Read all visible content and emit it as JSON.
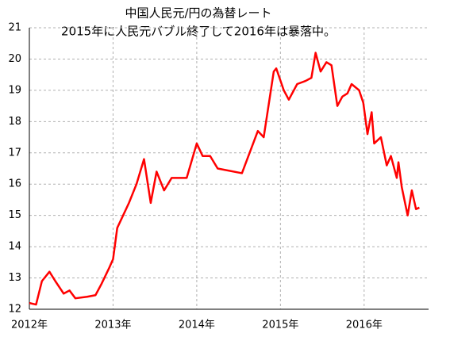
{
  "chart_data": {
    "type": "line",
    "title": "中国人民元/円の為替レート",
    "subtitle": "2015年に人民元バブル終了して2016年は暴落中。",
    "x": [
      2012.0,
      2012.08,
      2012.15,
      2012.24,
      2012.31,
      2012.41,
      2012.48,
      2012.55,
      2012.69,
      2012.79,
      2012.86,
      2012.95,
      2013.0,
      2013.05,
      2013.12,
      2013.19,
      2013.28,
      2013.37,
      2013.45,
      2013.52,
      2013.61,
      2013.7,
      2013.88,
      2014.0,
      2014.07,
      2014.16,
      2014.25,
      2014.54,
      2014.73,
      2014.8,
      2014.92,
      2014.95,
      2015.04,
      2015.1,
      2015.2,
      2015.3,
      2015.37,
      2015.42,
      2015.48,
      2015.55,
      2015.61,
      2015.68,
      2015.74,
      2015.8,
      2015.85,
      2015.94,
      2015.99,
      2016.04,
      2016.09,
      2016.12,
      2016.2,
      2016.27,
      2016.32,
      2016.39,
      2016.41,
      2016.45,
      2016.52,
      2016.57,
      2016.62,
      2016.66
    ],
    "series": [
      {
        "color": "#ff0000",
        "values": [
          12.2,
          12.15,
          12.9,
          13.2,
          12.9,
          12.5,
          12.6,
          12.35,
          12.4,
          12.45,
          12.8,
          13.3,
          13.6,
          14.6,
          15.0,
          15.4,
          16.0,
          16.8,
          15.4,
          16.4,
          15.8,
          16.2,
          16.2,
          17.3,
          16.9,
          16.9,
          16.5,
          16.35,
          17.7,
          17.5,
          19.6,
          19.7,
          19.0,
          18.7,
          19.2,
          19.3,
          19.4,
          20.2,
          19.6,
          19.9,
          19.8,
          18.5,
          18.8,
          18.9,
          19.2,
          19.0,
          18.6,
          17.6,
          18.3,
          17.3,
          17.5,
          16.6,
          16.9,
          16.2,
          16.7,
          15.9,
          15.0,
          15.8,
          15.2,
          15.25
        ]
      }
    ],
    "xlim": [
      2012,
      2016.77
    ],
    "xticks": [
      {
        "value": 2012,
        "label": "2012年"
      },
      {
        "value": 2013,
        "label": "2013年"
      },
      {
        "value": 2014,
        "label": "2014年"
      },
      {
        "value": 2015,
        "label": "2015年"
      },
      {
        "value": 2016,
        "label": "2016年"
      }
    ],
    "ylim": [
      12,
      21
    ],
    "yticks": [
      12,
      13,
      14,
      15,
      16,
      17,
      18,
      19,
      20,
      21
    ],
    "grid": true
  }
}
